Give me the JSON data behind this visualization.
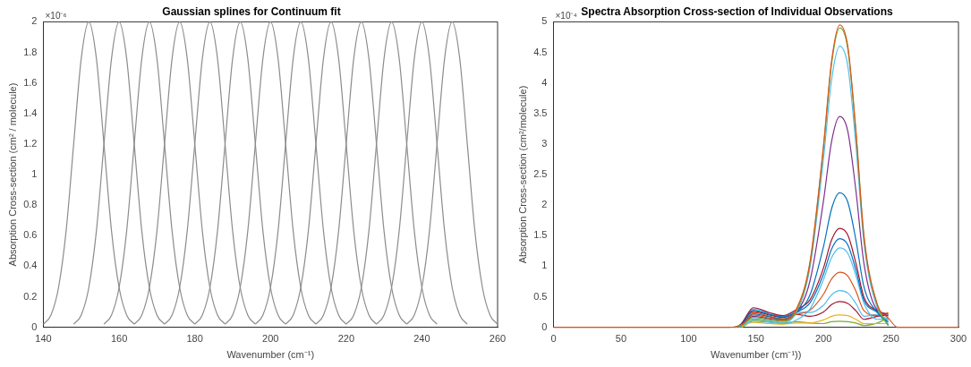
{
  "chart_data": [
    {
      "type": "line",
      "title": "Gaussian splines for Continuum fit",
      "xlabel": "Wavenumber (cm⁻¹)",
      "ylabel": "Absorption Cross-section (cm² / molecule)",
      "annotations": [
        "×10⁻⁶"
      ],
      "xlim": [
        140,
        260
      ],
      "xticks": [
        140,
        160,
        180,
        200,
        220,
        240,
        260
      ],
      "ylim": [
        0,
        2
      ],
      "yticks": [
        0,
        0.2,
        0.4,
        0.6,
        0.8,
        1,
        1.2,
        1.4,
        1.6,
        1.8,
        2
      ],
      "series": [
        {
          "color": "#8c8c8c",
          "x": [
            140,
            142,
            144,
            146,
            148,
            150,
            152,
            154,
            156,
            158,
            160,
            162,
            164
          ],
          "values": [
            0.02,
            0.08,
            0.26,
            0.63,
            1.2,
            1.76,
            2,
            1.76,
            1.2,
            0.63,
            0.26,
            0.08,
            0.02
          ]
        },
        {
          "color": "#8c8c8c",
          "x": [
            148,
            150,
            152,
            154,
            156,
            158,
            160,
            162,
            164,
            166,
            168,
            170,
            172
          ],
          "values": [
            0.02,
            0.08,
            0.26,
            0.63,
            1.2,
            1.76,
            2,
            1.76,
            1.2,
            0.63,
            0.26,
            0.08,
            0.02
          ]
        },
        {
          "color": "#8c8c8c",
          "x": [
            156,
            158,
            160,
            162,
            164,
            166,
            168,
            170,
            172,
            174,
            176,
            178,
            180
          ],
          "values": [
            0.02,
            0.08,
            0.26,
            0.63,
            1.2,
            1.76,
            2,
            1.76,
            1.2,
            0.63,
            0.26,
            0.08,
            0.02
          ]
        },
        {
          "color": "#8c8c8c",
          "x": [
            164,
            166,
            168,
            170,
            172,
            174,
            176,
            178,
            180,
            182,
            184,
            186,
            188
          ],
          "values": [
            0.02,
            0.08,
            0.26,
            0.63,
            1.2,
            1.76,
            2,
            1.76,
            1.2,
            0.63,
            0.26,
            0.08,
            0.02
          ]
        },
        {
          "color": "#8c8c8c",
          "x": [
            172,
            174,
            176,
            178,
            180,
            182,
            184,
            186,
            188,
            190,
            192,
            194,
            196
          ],
          "values": [
            0.02,
            0.08,
            0.26,
            0.63,
            1.2,
            1.76,
            2,
            1.76,
            1.2,
            0.63,
            0.26,
            0.08,
            0.02
          ]
        },
        {
          "color": "#8c8c8c",
          "x": [
            180,
            182,
            184,
            186,
            188,
            190,
            192,
            194,
            196,
            198,
            200,
            202,
            204
          ],
          "values": [
            0.02,
            0.08,
            0.26,
            0.63,
            1.2,
            1.76,
            2,
            1.76,
            1.2,
            0.63,
            0.26,
            0.08,
            0.02
          ]
        },
        {
          "color": "#8c8c8c",
          "x": [
            188,
            190,
            192,
            194,
            196,
            198,
            200,
            202,
            204,
            206,
            208,
            210,
            212
          ],
          "values": [
            0.02,
            0.08,
            0.26,
            0.63,
            1.2,
            1.76,
            2,
            1.76,
            1.2,
            0.63,
            0.26,
            0.08,
            0.02
          ]
        },
        {
          "color": "#8c8c8c",
          "x": [
            196,
            198,
            200,
            202,
            204,
            206,
            208,
            210,
            212,
            214,
            216,
            218,
            220
          ],
          "values": [
            0.02,
            0.08,
            0.26,
            0.63,
            1.2,
            1.76,
            2,
            1.76,
            1.2,
            0.63,
            0.26,
            0.08,
            0.02
          ]
        },
        {
          "color": "#8c8c8c",
          "x": [
            204,
            206,
            208,
            210,
            212,
            214,
            216,
            218,
            220,
            222,
            224,
            226,
            228
          ],
          "values": [
            0.02,
            0.08,
            0.26,
            0.63,
            1.2,
            1.76,
            2,
            1.76,
            1.2,
            0.63,
            0.26,
            0.08,
            0.02
          ]
        },
        {
          "color": "#8c8c8c",
          "x": [
            212,
            214,
            216,
            218,
            220,
            222,
            224,
            226,
            228,
            230,
            232,
            234,
            236
          ],
          "values": [
            0.02,
            0.08,
            0.26,
            0.63,
            1.2,
            1.76,
            2,
            1.76,
            1.2,
            0.63,
            0.26,
            0.08,
            0.02
          ]
        },
        {
          "color": "#8c8c8c",
          "x": [
            220,
            222,
            224,
            226,
            228,
            230,
            232,
            234,
            236,
            238,
            240,
            242,
            244
          ],
          "values": [
            0.02,
            0.08,
            0.26,
            0.63,
            1.2,
            1.76,
            2,
            1.76,
            1.2,
            0.63,
            0.26,
            0.08,
            0.02
          ]
        },
        {
          "color": "#8c8c8c",
          "x": [
            228,
            230,
            232,
            234,
            236,
            238,
            240,
            242,
            244,
            246,
            248,
            250,
            252
          ],
          "values": [
            0.02,
            0.08,
            0.26,
            0.63,
            1.2,
            1.76,
            2,
            1.76,
            1.2,
            0.63,
            0.26,
            0.08,
            0.02
          ]
        },
        {
          "color": "#8c8c8c",
          "x": [
            236,
            238,
            240,
            242,
            244,
            246,
            248,
            250,
            252,
            254,
            256,
            258,
            260
          ],
          "values": [
            0.02,
            0.08,
            0.26,
            0.63,
            1.2,
            1.76,
            2,
            1.76,
            1.2,
            0.63,
            0.26,
            0.08,
            0.02
          ]
        }
      ]
    },
    {
      "type": "line",
      "title": "Spectra Absorption Cross-section of Individual Observations",
      "xlabel": "Wavenumber (cm⁻¹))",
      "ylabel": "Absorption Cross-section (cm²/molecule)",
      "annotations": [
        "×10⁻⁴"
      ],
      "xlim": [
        0,
        300
      ],
      "xticks": [
        0,
        50,
        100,
        150,
        200,
        250,
        300
      ],
      "ylim": [
        0,
        5
      ],
      "yticks": [
        0,
        0.5,
        1,
        1.5,
        2,
        2.5,
        3,
        3.5,
        4,
        4.5,
        5
      ],
      "x": [
        0,
        130,
        140,
        148,
        160,
        170,
        180,
        190,
        200,
        206,
        212,
        218,
        224,
        230,
        240,
        248,
        255,
        300
      ],
      "series": [
        {
          "color": "#d95319",
          "values": [
            0,
            0,
            0.05,
            0.2,
            0.15,
            0.12,
            0.3,
            1.07,
            2.97,
            4.36,
            4.95,
            4.6,
            3.22,
            1.49,
            0.37,
            0.15,
            0,
            0
          ]
        },
        {
          "color": "#77ac30",
          "x": [
            134,
            140,
            148,
            160,
            170,
            180,
            190,
            200,
            206,
            212,
            218,
            224,
            230,
            240,
            248
          ],
          "values": [
            0,
            0.04,
            0.16,
            0.12,
            0.1,
            0.27,
            1.04,
            2.94,
            4.31,
            4.9,
            4.56,
            3.19,
            1.47,
            0.35,
            0.02
          ]
        },
        {
          "color": "#4dbeee",
          "x": [
            134.5,
            140,
            148,
            160,
            170,
            180,
            190,
            200,
            206,
            212,
            218,
            224,
            230,
            240,
            248
          ],
          "values": [
            0,
            0.04,
            0.14,
            0.11,
            0.08,
            0.25,
            0.98,
            2.76,
            4.05,
            4.6,
            4.28,
            2.99,
            1.38,
            0.31,
            0.12
          ]
        },
        {
          "color": "#7e2f8e",
          "x": [
            135,
            140,
            148,
            160,
            170,
            180,
            190,
            200,
            206,
            212,
            218,
            224,
            230,
            240,
            248
          ],
          "values": [
            0,
            0.05,
            0.18,
            0.14,
            0.11,
            0.24,
            0.76,
            2.07,
            3.04,
            3.45,
            3.21,
            2.24,
            1.04,
            0.28,
            0.22
          ]
        },
        {
          "color": "#0072bd",
          "x": [
            135.5,
            140,
            148,
            160,
            170,
            180,
            190,
            200,
            206,
            212,
            218,
            224,
            230,
            240,
            248
          ],
          "values": [
            0,
            0.06,
            0.22,
            0.17,
            0.13,
            0.24,
            0.53,
            1.32,
            1.94,
            2.2,
            2.05,
            1.43,
            0.66,
            0.24,
            0.08
          ]
        },
        {
          "color": "#a2142f",
          "x": [
            136,
            140,
            148,
            160,
            170,
            180,
            190,
            200,
            206,
            212,
            218,
            224,
            230,
            240,
            248
          ],
          "values": [
            0,
            0.08,
            0.32,
            0.24,
            0.19,
            0.29,
            0.45,
            0.97,
            1.43,
            1.62,
            1.51,
            1.05,
            0.49,
            0.27,
            0.18
          ]
        },
        {
          "color": "#0072bd",
          "x": [
            136.5,
            140,
            148,
            160,
            170,
            180,
            190,
            200,
            206,
            212,
            218,
            224,
            230,
            240,
            248
          ],
          "values": [
            0,
            0.07,
            0.28,
            0.21,
            0.17,
            0.25,
            0.4,
            0.87,
            1.28,
            1.45,
            1.35,
            0.94,
            0.44,
            0.24,
            0.04
          ]
        },
        {
          "color": "#4dbeee",
          "x": [
            137,
            140,
            148,
            160,
            170,
            180,
            190,
            200,
            206,
            212,
            218,
            224,
            230,
            240,
            248
          ],
          "values": [
            0,
            0.03,
            0.1,
            0.08,
            0.06,
            0.12,
            0.3,
            0.78,
            1.14,
            1.3,
            1.21,
            0.85,
            0.39,
            0.13,
            0.14
          ]
        },
        {
          "color": "#d95319",
          "x": [
            137.5,
            140,
            148,
            160,
            170,
            180,
            190,
            200,
            206,
            212,
            218,
            224,
            230,
            240,
            248
          ],
          "values": [
            0,
            0.06,
            0.24,
            0.18,
            0.14,
            0.21,
            0.28,
            0.54,
            0.79,
            0.9,
            0.84,
            0.59,
            0.27,
            0.19,
            0.24
          ]
        },
        {
          "color": "#4dbeee",
          "x": [
            138,
            140,
            148,
            160,
            170,
            180,
            190,
            200,
            206,
            212,
            218,
            224,
            230,
            240,
            248
          ],
          "values": [
            0,
            0.08,
            0.3,
            0.23,
            0.18,
            0.25,
            0.24,
            0.36,
            0.53,
            0.6,
            0.56,
            0.39,
            0.18,
            0.21,
            0.1
          ]
        },
        {
          "color": "#a2142f",
          "x": [
            138.5,
            140,
            148,
            160,
            170,
            180,
            190,
            200,
            206,
            212,
            218,
            224,
            230,
            240,
            248
          ],
          "values": [
            0,
            0.07,
            0.26,
            0.2,
            0.16,
            0.21,
            0.18,
            0.25,
            0.37,
            0.42,
            0.39,
            0.27,
            0.13,
            0.18,
            0.2
          ]
        },
        {
          "color": "#edb120",
          "x": [
            139,
            140,
            148,
            160,
            170,
            180,
            190,
            200,
            206,
            212,
            218,
            224,
            230,
            240,
            248
          ],
          "values": [
            0,
            0.02,
            0.08,
            0.06,
            0.05,
            0.07,
            0.07,
            0.12,
            0.18,
            0.2,
            0.19,
            0.13,
            0.06,
            0.06,
            0.06
          ]
        },
        {
          "color": "#77ac30",
          "x": [
            139.5,
            142,
            148,
            160,
            170,
            180,
            190,
            200,
            206,
            212,
            218,
            224,
            230,
            240,
            248
          ],
          "values": [
            0,
            0.03,
            0.12,
            0.09,
            0.07,
            0.09,
            0.07,
            0.06,
            0.09,
            0.1,
            0.09,
            0.07,
            0.03,
            0.07,
            0.16
          ]
        }
      ]
    }
  ]
}
